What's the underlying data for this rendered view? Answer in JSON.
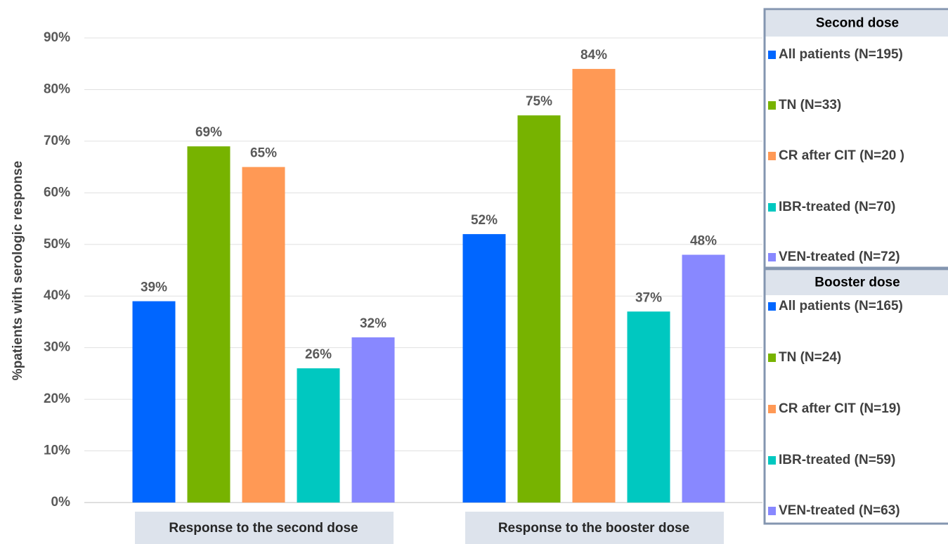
{
  "chart_data": {
    "type": "bar",
    "y_label": "%patients with serologic response",
    "categories": [
      "Response to the second dose",
      "Response to the booster dose"
    ],
    "ylim": [
      0,
      90
    ],
    "yticks": [
      {
        "value": 0,
        "label": "0%"
      },
      {
        "value": 10,
        "label": "10%"
      },
      {
        "value": 20,
        "label": "20%"
      },
      {
        "value": 30,
        "label": "30%"
      },
      {
        "value": 40,
        "label": "40%"
      },
      {
        "value": 50,
        "label": "50%"
      },
      {
        "value": 60,
        "label": "60%"
      },
      {
        "value": 70,
        "label": "70%"
      },
      {
        "value": 80,
        "label": "80%"
      },
      {
        "value": 90,
        "label": "90%"
      }
    ],
    "grid": true,
    "series": [
      {
        "color": "#0066ff",
        "values": [
          39,
          52
        ],
        "value_labels": [
          "39%",
          "52%"
        ]
      },
      {
        "color": "#77b300",
        "values": [
          69,
          75
        ],
        "value_labels": [
          "69%",
          "75%"
        ]
      },
      {
        "color": "#ff9955",
        "values": [
          65,
          84
        ],
        "value_labels": [
          "65%",
          "84%"
        ]
      },
      {
        "color": "#00c8c0",
        "values": [
          26,
          37
        ],
        "value_labels": [
          "26%",
          "37%"
        ]
      },
      {
        "color": "#8888ff",
        "values": [
          32,
          48
        ],
        "value_labels": [
          "32%",
          "48%"
        ]
      }
    ],
    "legend": [
      {
        "title": "Second dose",
        "entries": [
          "All patients (N=195)",
          "TN (N=33)",
          "CR after CIT (N=20 )",
          "IBR-treated (N=70)",
          "VEN-treated (N=72)"
        ]
      },
      {
        "title": "Booster dose",
        "entries": [
          "All patients (N=165)",
          "TN (N=24)",
          "CR after CIT (N=19)",
          "IBR-treated (N=59)",
          "VEN-treated (N=63)"
        ]
      }
    ]
  }
}
